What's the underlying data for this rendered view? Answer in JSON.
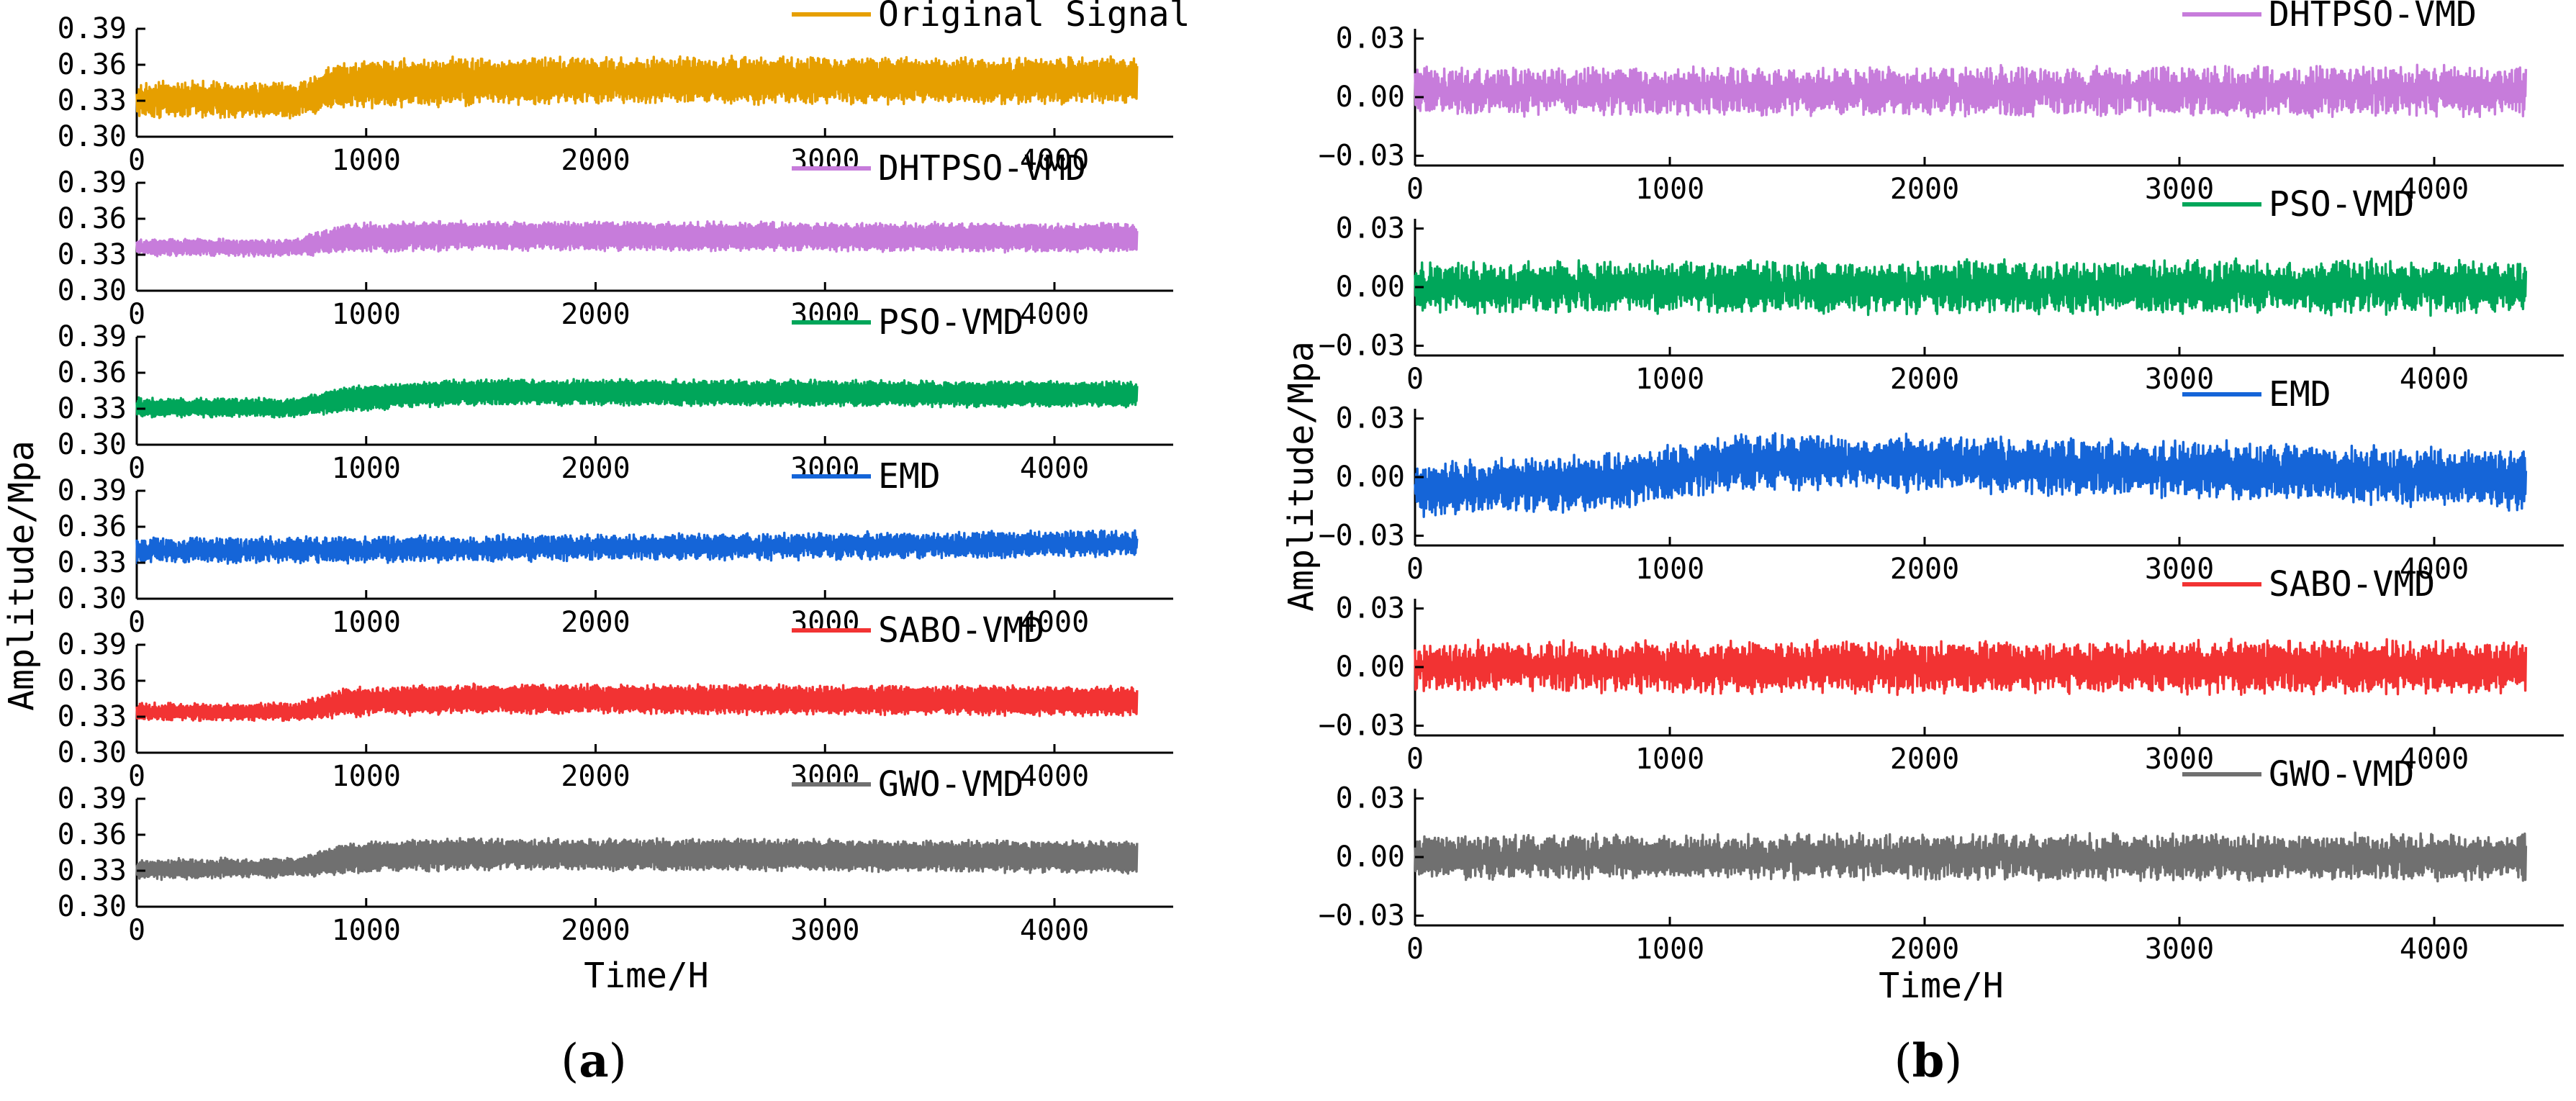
{
  "figure": {
    "panels": [
      {
        "id": "a",
        "paren_open": "(",
        "letter": "a",
        "paren_close": ")",
        "xlabel": "Time/H",
        "ylabel": "Amplitude/Mpa"
      },
      {
        "id": "b",
        "paren_open": "(",
        "letter": "b",
        "paren_close": ")",
        "xlabel": "Time/H",
        "ylabel": "Amplitude/Mpa"
      }
    ]
  },
  "chart_data": [
    {
      "type": "line",
      "panel": "a",
      "xlabel": "Time/H",
      "ylabel": "Amplitude/Mpa",
      "xlim": [
        0,
        4400
      ],
      "x_ticks": [
        0,
        1000,
        2000,
        3000,
        4000
      ],
      "x_tick_labels": [
        "0",
        "1000",
        "2000",
        "3000",
        "4000"
      ],
      "ylim": [
        0.3,
        0.39
      ],
      "y_ticks": [
        0.3,
        0.33,
        0.36,
        0.39
      ],
      "y_tick_labels": [
        "0.30",
        "0.33",
        "0.36",
        "0.39"
      ],
      "legend_position": "top-right",
      "series": [
        {
          "name": "Original Signal",
          "color": "#E69F00",
          "x_range": [
            0,
            4360
          ],
          "trend": [
            [
              0,
              0.331
            ],
            [
              700,
              0.331
            ],
            [
              900,
              0.343
            ],
            [
              1400,
              0.346
            ],
            [
              2000,
              0.347
            ],
            [
              3000,
              0.347
            ],
            [
              4000,
              0.347
            ],
            [
              4360,
              0.347
            ]
          ],
          "half_amplitude": [
            [
              0,
              0.012
            ],
            [
              700,
              0.012
            ],
            [
              900,
              0.017
            ],
            [
              4360,
              0.017
            ]
          ],
          "noise": 0.004
        },
        {
          "name": "DHTPSO-VMD",
          "color": "#C77CDB",
          "x_range": [
            0,
            4360
          ],
          "trend": [
            [
              0,
              0.336
            ],
            [
              700,
              0.336
            ],
            [
              900,
              0.344
            ],
            [
              1400,
              0.346
            ],
            [
              3000,
              0.345
            ],
            [
              4000,
              0.344
            ],
            [
              4360,
              0.344
            ]
          ],
          "half_amplitude": [
            [
              0,
              0.006
            ],
            [
              700,
              0.006
            ],
            [
              900,
              0.011
            ],
            [
              4360,
              0.011
            ]
          ],
          "noise": 0.002
        },
        {
          "name": "PSO-VMD",
          "color": "#00A65A",
          "x_range": [
            0,
            4360
          ],
          "trend": [
            [
              0,
              0.331
            ],
            [
              700,
              0.331
            ],
            [
              900,
              0.338
            ],
            [
              1400,
              0.344
            ],
            [
              3000,
              0.343
            ],
            [
              4000,
              0.342
            ],
            [
              4360,
              0.342
            ]
          ],
          "half_amplitude": [
            [
              0,
              0.007
            ],
            [
              700,
              0.007
            ],
            [
              900,
              0.01
            ],
            [
              4360,
              0.01
            ]
          ],
          "noise": 0.0015
        },
        {
          "name": "EMD",
          "color": "#1565D8",
          "x_range": [
            0,
            4360
          ],
          "trend": [
            [
              0,
              0.34
            ],
            [
              4360,
              0.346
            ]
          ],
          "half_amplitude": [
            [
              0,
              0.008
            ],
            [
              4360,
              0.008
            ]
          ],
          "noise": 0.004
        },
        {
          "name": "SABO-VMD",
          "color": "#F23333",
          "x_range": [
            0,
            4360
          ],
          "trend": [
            [
              0,
              0.334
            ],
            [
              700,
              0.334
            ],
            [
              900,
              0.342
            ],
            [
              1400,
              0.345
            ],
            [
              3000,
              0.344
            ],
            [
              4360,
              0.343
            ]
          ],
          "half_amplitude": [
            [
              0,
              0.006
            ],
            [
              700,
              0.006
            ],
            [
              900,
              0.011
            ],
            [
              4360,
              0.011
            ]
          ],
          "noise": 0.002
        },
        {
          "name": "GWO-VMD",
          "color": "#707070",
          "x_range": [
            0,
            4360
          ],
          "trend": [
            [
              0,
              0.331
            ],
            [
              700,
              0.333
            ],
            [
              900,
              0.34
            ],
            [
              1400,
              0.344
            ],
            [
              3000,
              0.343
            ],
            [
              4360,
              0.341
            ]
          ],
          "half_amplitude": [
            [
              0,
              0.007
            ],
            [
              700,
              0.007
            ],
            [
              900,
              0.012
            ],
            [
              4360,
              0.012
            ]
          ],
          "noise": 0.002
        }
      ]
    },
    {
      "type": "line",
      "panel": "b",
      "xlabel": "Time/H",
      "ylabel": "Amplitude/Mpa",
      "xlim": [
        0,
        4400
      ],
      "x_ticks": [
        0,
        1000,
        2000,
        3000,
        4000
      ],
      "x_tick_labels": [
        "0",
        "1000",
        "2000",
        "3000",
        "4000"
      ],
      "ylim": [
        -0.035,
        0.035
      ],
      "y_ticks": [
        -0.03,
        0.0,
        0.03
      ],
      "y_tick_labels": [
        "−0.03",
        "0.00",
        "0.03"
      ],
      "legend_position": "top-right",
      "series": [
        {
          "name": "DHTPSO-VMD",
          "color": "#C77CDB",
          "x_range": [
            0,
            4360
          ],
          "trend": [
            [
              0,
              0.003
            ],
            [
              4360,
              0.003
            ]
          ],
          "half_amplitude": [
            [
              0,
              0.008
            ],
            [
              4360,
              0.009
            ]
          ],
          "noise": 0.005
        },
        {
          "name": "PSO-VMD",
          "color": "#00A65A",
          "x_range": [
            0,
            4360
          ],
          "trend": [
            [
              0,
              0.0
            ],
            [
              4360,
              0.0
            ]
          ],
          "half_amplitude": [
            [
              0,
              0.009
            ],
            [
              4360,
              0.01
            ]
          ],
          "noise": 0.005
        },
        {
          "name": "EMD",
          "color": "#1565D8",
          "x_range": [
            0,
            4360
          ],
          "trend": [
            [
              0,
              -0.007
            ],
            [
              800,
              -0.002
            ],
            [
              1300,
              0.008
            ],
            [
              2000,
              0.007
            ],
            [
              3000,
              0.004
            ],
            [
              4000,
              0.0
            ],
            [
              4360,
              -0.002
            ]
          ],
          "half_amplitude": [
            [
              0,
              0.01
            ],
            [
              4360,
              0.011
            ]
          ],
          "noise": 0.005
        },
        {
          "name": "SABO-VMD",
          "color": "#F23333",
          "x_range": [
            0,
            4360
          ],
          "trend": [
            [
              0,
              0.0
            ],
            [
              4360,
              0.0
            ]
          ],
          "half_amplitude": [
            [
              0,
              0.009
            ],
            [
              4360,
              0.01
            ]
          ],
          "noise": 0.005
        },
        {
          "name": "GWO-VMD",
          "color": "#707070",
          "x_range": [
            0,
            4360
          ],
          "trend": [
            [
              0,
              0.0
            ],
            [
              4360,
              0.0
            ]
          ],
          "half_amplitude": [
            [
              0,
              0.008
            ],
            [
              4360,
              0.009
            ]
          ],
          "noise": 0.004
        }
      ]
    }
  ]
}
